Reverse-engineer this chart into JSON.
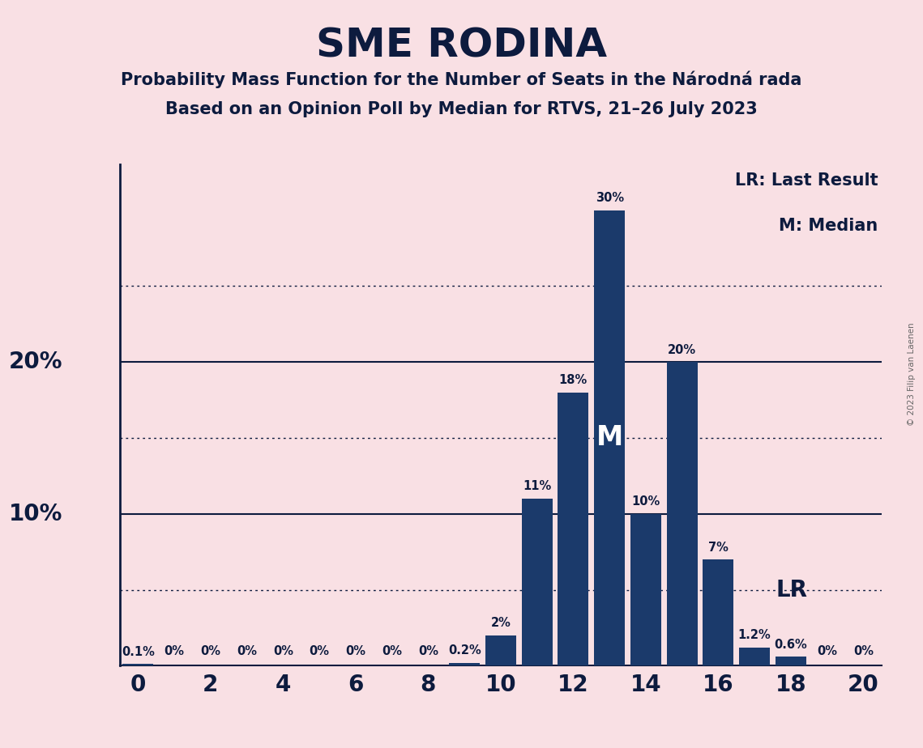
{
  "title": "SME RODINA",
  "subtitle1": "Probability Mass Function for the Number of Seats in the Národná rada",
  "subtitle2": "Based on an Opinion Poll by Median for RTVS, 21–26 July 2023",
  "copyright": "© 2023 Filip van Laenen",
  "seats": [
    0,
    1,
    2,
    3,
    4,
    5,
    6,
    7,
    8,
    9,
    10,
    11,
    12,
    13,
    14,
    15,
    16,
    17,
    18,
    19,
    20
  ],
  "probabilities": [
    0.1,
    0.0,
    0.0,
    0.0,
    0.0,
    0.0,
    0.0,
    0.0,
    0.0,
    0.2,
    2.0,
    11.0,
    18.0,
    30.0,
    10.0,
    20.0,
    7.0,
    1.2,
    0.6,
    0.0,
    0.0
  ],
  "bar_color": "#1b3a6b",
  "background_color": "#f9e0e4",
  "text_color": "#0d1b3e",
  "median_seat": 13,
  "lr_seat": 17,
  "solid_lines": [
    10,
    20
  ],
  "dotted_lines": [
    5,
    15,
    25
  ],
  "xlim_min": -0.5,
  "xlim_max": 20.5,
  "ylim_min": 0,
  "ylim_max": 33,
  "xlabel_ticks": [
    0,
    2,
    4,
    6,
    8,
    10,
    12,
    14,
    16,
    18,
    20
  ],
  "bar_labels": {
    "0": "0.1%",
    "1": "0%",
    "2": "0%",
    "3": "0%",
    "4": "0%",
    "5": "0%",
    "6": "0%",
    "7": "0%",
    "8": "0%",
    "9": "0.2%",
    "10": "2%",
    "11": "11%",
    "12": "18%",
    "13": "30%",
    "14": "10%",
    "15": "20%",
    "16": "7%",
    "17": "1.2%",
    "18": "0.6%",
    "19": "0%",
    "20": "0%"
  },
  "ylabel_values": [
    10,
    20
  ],
  "ylabel_labels": [
    "10%",
    "20%"
  ]
}
